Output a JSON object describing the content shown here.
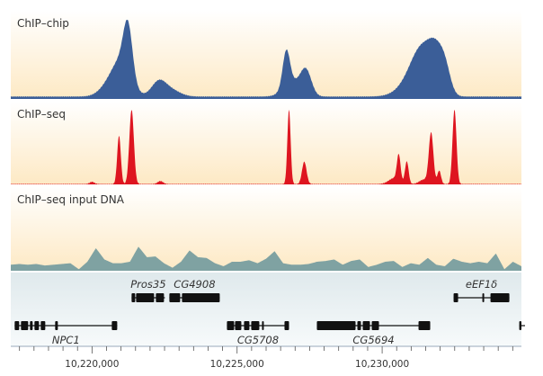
{
  "chart_data": {
    "type": "area",
    "xlim": [
      10217200,
      10234800
    ],
    "x_ticks": [
      {
        "value": 10220000,
        "label": "10,220,000"
      },
      {
        "value": 10225000,
        "label": "10,225,000"
      },
      {
        "value": 10230000,
        "label": "10,230,000"
      }
    ],
    "minor_tick_interval": 500,
    "grid": false,
    "tracks": [
      {
        "name": "ChIP–chip",
        "color": "#3b5e98",
        "baseline": 0.03,
        "peaks": [
          {
            "center": 10221240,
            "height": 0.62,
            "width": 155
          },
          {
            "center": 10221023,
            "height": 0.42,
            "width": 310
          },
          {
            "center": 10220558,
            "height": 0.12,
            "width": 310
          },
          {
            "center": 10222294,
            "height": 0.18,
            "width": 248
          },
          {
            "center": 10222728,
            "height": 0.08,
            "width": 310
          },
          {
            "center": 10226696,
            "height": 0.45,
            "width": 124
          },
          {
            "center": 10227378,
            "height": 0.3,
            "width": 186
          },
          {
            "center": 10226913,
            "height": 0.18,
            "width": 310
          },
          {
            "center": 10231408,
            "height": 0.45,
            "width": 372
          },
          {
            "center": 10231873,
            "height": 0.4,
            "width": 250
          },
          {
            "center": 10232183,
            "height": 0.25,
            "width": 186
          },
          {
            "center": 10231098,
            "height": 0.2,
            "width": 465
          }
        ]
      },
      {
        "name": "ChIP–seq",
        "color": "#de1520",
        "baseline": 0.005,
        "peaks": [
          {
            "center": 10220930,
            "height": 0.65,
            "width": 62
          },
          {
            "center": 10221364,
            "height": 1.0,
            "width": 78
          },
          {
            "center": 10222356,
            "height": 0.04,
            "width": 93
          },
          {
            "center": 10220000,
            "height": 0.03,
            "width": 80
          },
          {
            "center": 10226789,
            "height": 1.0,
            "width": 56
          },
          {
            "center": 10227316,
            "height": 0.3,
            "width": 78
          },
          {
            "center": 10230416,
            "height": 0.08,
            "width": 186
          },
          {
            "center": 10230571,
            "height": 0.35,
            "width": 62
          },
          {
            "center": 10230850,
            "height": 0.3,
            "width": 62
          },
          {
            "center": 10231439,
            "height": 0.06,
            "width": 155
          },
          {
            "center": 10231687,
            "height": 0.68,
            "width": 78
          },
          {
            "center": 10231966,
            "height": 0.18,
            "width": 62
          },
          {
            "center": 10232493,
            "height": 1.0,
            "width": 68
          }
        ]
      },
      {
        "name": "ChIP–seq input DNA",
        "color": "#7fa2a2",
        "values": [
          0.08,
          0.09,
          0.08,
          0.09,
          0.07,
          0.08,
          0.09,
          0.1,
          0.02,
          0.12,
          0.3,
          0.15,
          0.1,
          0.1,
          0.12,
          0.32,
          0.18,
          0.19,
          0.1,
          0.04,
          0.12,
          0.27,
          0.18,
          0.17,
          0.1,
          0.06,
          0.12,
          0.12,
          0.14,
          0.1,
          0.16,
          0.26,
          0.1,
          0.08,
          0.08,
          0.09,
          0.12,
          0.13,
          0.15,
          0.08,
          0.13,
          0.15,
          0.05,
          0.08,
          0.12,
          0.13,
          0.05,
          0.1,
          0.08,
          0.17,
          0.08,
          0.06,
          0.16,
          0.12,
          0.1,
          0.12,
          0.1,
          0.23,
          0.02,
          0.12,
          0.06
        ]
      }
    ],
    "genes": [
      {
        "name": "NPC1",
        "row": "bottom",
        "start": 10217334,
        "end": 10220868,
        "exons": [
          [
            10217334,
            10217489
          ],
          [
            10217551,
            10217799
          ],
          [
            10217861,
            10217954
          ],
          [
            10218016,
            10218171
          ],
          [
            10218233,
            10218388
          ],
          [
            10218729,
            10218822
          ],
          [
            10220682,
            10220868
          ]
        ]
      },
      {
        "name": "Pros35",
        "row": "top",
        "start": 10221364,
        "end": 10222511,
        "exons": [
          [
            10221364,
            10221488
          ],
          [
            10221519,
            10222139
          ],
          [
            10222201,
            10222480
          ]
        ]
      },
      {
        "name": "CG4908",
        "row": "top",
        "start": 10222666,
        "end": 10224402,
        "exons": [
          [
            10222666,
            10223038
          ],
          [
            10223100,
            10224402
          ]
        ]
      },
      {
        "name": "CG5708",
        "row": "bottom",
        "start": 10224650,
        "end": 10226789,
        "exons": [
          [
            10224650,
            10224898
          ],
          [
            10224929,
            10225146
          ],
          [
            10225239,
            10225425
          ],
          [
            10225487,
            10225766
          ],
          [
            10225859,
            10225921
          ],
          [
            10226634,
            10226789
          ]
        ]
      },
      {
        "name": "CG5694",
        "row": "bottom",
        "start": 10227750,
        "end": 10231656,
        "exons": [
          [
            10227750,
            10229083
          ],
          [
            10229145,
            10229269
          ],
          [
            10229331,
            10229579
          ],
          [
            10229641,
            10229889
          ],
          [
            10231253,
            10231656
          ]
        ]
      },
      {
        "name": "eEF1δ",
        "row": "top",
        "start": 10232462,
        "end": 10234384,
        "exons": [
          [
            10232462,
            10232617
          ],
          [
            10233454,
            10233516
          ],
          [
            10233733,
            10234384
          ]
        ]
      },
      {
        "name": "",
        "row": "bottom",
        "start": 10234725,
        "end": 10235004,
        "exons": [
          [
            10234725,
            10235004
          ]
        ]
      }
    ]
  }
}
